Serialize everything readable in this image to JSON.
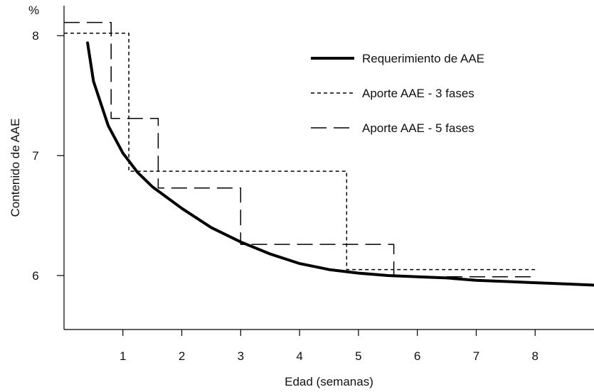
{
  "chart_data": {
    "type": "line",
    "title": "",
    "xlabel": "Edad (semanas)",
    "ylabel": "Contenido de AAE",
    "y_unit": "%",
    "xlim": [
      0,
      9
    ],
    "ylim": [
      5.55,
      8.25
    ],
    "x_ticks": [
      1,
      2,
      3,
      4,
      5,
      6,
      7,
      8
    ],
    "y_ticks": [
      6,
      7,
      8
    ],
    "grid": false,
    "legend_position": "top-right",
    "series": [
      {
        "name": "Requerimiento de AAE",
        "style": "solid-thick",
        "x": [
          0.4,
          0.5,
          0.75,
          1.0,
          1.25,
          1.5,
          2.0,
          2.5,
          3.0,
          3.5,
          4.0,
          4.5,
          5.0,
          5.5,
          6.0,
          6.5,
          7.0,
          7.5,
          8.0,
          8.5,
          9.0
        ],
        "y": [
          7.94,
          7.62,
          7.25,
          7.02,
          6.86,
          6.74,
          6.56,
          6.4,
          6.28,
          6.18,
          6.1,
          6.05,
          6.02,
          6.0,
          5.99,
          5.98,
          5.96,
          5.95,
          5.94,
          5.93,
          5.92
        ]
      },
      {
        "name": "Aporte AAE - 3 fases",
        "style": "short-dash",
        "x": [
          0.0,
          1.1,
          1.1,
          4.8,
          4.8,
          8.0
        ],
        "y": [
          8.02,
          8.02,
          6.87,
          6.87,
          6.05,
          6.05
        ]
      },
      {
        "name": "Aporte AAE - 5 fases",
        "style": "long-dash",
        "x": [
          0.0,
          0.8,
          0.8,
          1.6,
          1.6,
          3.0,
          3.0,
          5.6,
          5.6,
          8.0
        ],
        "y": [
          8.11,
          8.11,
          7.31,
          7.31,
          6.73,
          6.73,
          6.26,
          6.26,
          5.99,
          5.99
        ]
      }
    ]
  }
}
